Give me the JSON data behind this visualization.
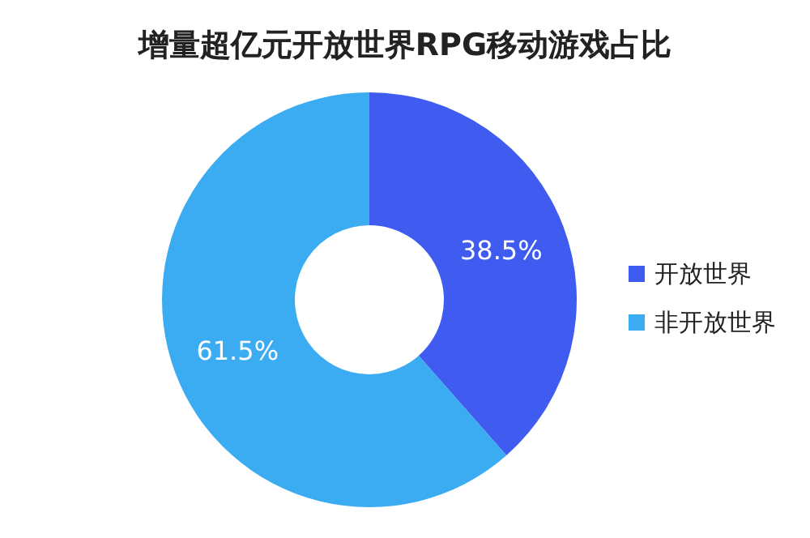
{
  "chart_data": {
    "type": "donut",
    "title": "增量超亿元开放世界RPG移动游戏占比",
    "categories": [
      "开放世界",
      "非开放世界"
    ],
    "values": [
      38.5,
      61.5
    ],
    "value_labels": [
      "38.5%",
      "61.5%"
    ],
    "colors": [
      "#3f5bf0",
      "#3cacf2"
    ],
    "legend": "right"
  }
}
